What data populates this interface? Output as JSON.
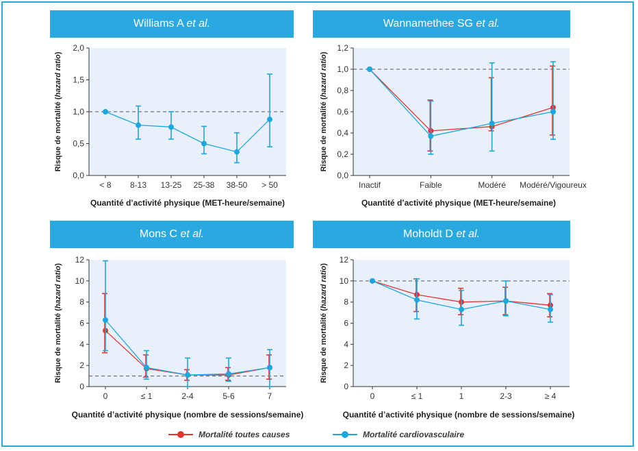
{
  "colors": {
    "accent": "#29a9e0",
    "red": "#e3342f",
    "blue": "#1ba7e0",
    "plot_bg": "#e8f1fb"
  },
  "legend": {
    "all_cause": "Mortalité toutes causes",
    "cardio": "Mortalité cardiovasculaire"
  },
  "panels": [
    {
      "title_main": "Williams A ",
      "title_em": "et al."
    },
    {
      "title_main": "Wannamethee SG ",
      "title_em": "et al."
    },
    {
      "title_main": "Mons C ",
      "title_em": "et al."
    },
    {
      "title_main": "Moholdt D ",
      "title_em": "et al."
    }
  ],
  "chart_data": [
    {
      "type": "line",
      "title": "Williams A et al.",
      "ylabel_main": "Risque de mortalité (",
      "ylabel_em": "hazard ratio",
      "ylabel_end": ")",
      "xlabel": "Quantité d’activité physique (MET-heure/semaine)",
      "categories": [
        "< 8",
        "8-13",
        "13-25",
        "25-38",
        "38-50",
        "> 50"
      ],
      "ylim": [
        0,
        2
      ],
      "yticks": [
        "0,0",
        "0,5",
        "1,0",
        "1,5",
        "2,0"
      ],
      "reference": 1,
      "series": [
        {
          "color": "blue",
          "values": [
            1.0,
            0.79,
            0.76,
            0.5,
            0.37,
            0.88
          ],
          "lower": [
            null,
            0.57,
            0.57,
            0.34,
            0.2,
            0.45
          ],
          "upper": [
            null,
            1.09,
            1.0,
            0.77,
            0.67,
            1.59
          ]
        }
      ]
    },
    {
      "type": "line",
      "title": "Wannamethee SG et al.",
      "ylabel_main": "Risque de mortalité (",
      "ylabel_em": "hazard ratio",
      "ylabel_end": ")",
      "xlabel": "Quantité d’activité physique (MET-heure/semaine)",
      "categories": [
        "Inactif",
        "Faible",
        "Modéré",
        "Modéré/Vigoureux"
      ],
      "ylim": [
        0,
        1.2
      ],
      "yticks": [
        "0,0",
        "0,2",
        "0,4",
        "0,6",
        "0,8",
        "1,0",
        "1,2"
      ],
      "reference": 1,
      "series": [
        {
          "name": "Mortalité toutes causes",
          "color": "red",
          "values": [
            1.0,
            0.42,
            0.46,
            0.64
          ],
          "lower": [
            null,
            0.23,
            0.42,
            0.38
          ],
          "upper": [
            null,
            0.71,
            0.92,
            1.03
          ]
        },
        {
          "name": "Mortalité cardiovasculaire",
          "color": "blue",
          "values": [
            1.0,
            0.37,
            0.49,
            0.6
          ],
          "lower": [
            null,
            0.2,
            0.23,
            0.34
          ],
          "upper": [
            null,
            0.7,
            1.06,
            1.07
          ]
        }
      ]
    },
    {
      "type": "line",
      "title": "Mons C et al.",
      "ylabel_main": "Risque de mortalité (",
      "ylabel_em": "hazard ratio",
      "ylabel_end": ")",
      "xlabel": "Quantité d’activité physique (nombre de sessions/semaine)",
      "categories": [
        "0",
        "≤ 1",
        "2-4",
        "5-6",
        "7"
      ],
      "ylim": [
        0,
        12
      ],
      "yticks": [
        "0",
        "2",
        "4",
        "6",
        "8",
        "10",
        "12"
      ],
      "reference": 1,
      "series": [
        {
          "name": "Mortalité toutes causes",
          "color": "red",
          "values": [
            5.3,
            1.7,
            1.1,
            1.1,
            1.8
          ],
          "lower": [
            3.2,
            0.9,
            0.6,
            0.6,
            0.7
          ],
          "upper": [
            8.8,
            3.0,
            1.6,
            1.8,
            3.0
          ]
        },
        {
          "name": "Mortalité cardiovasculaire",
          "color": "blue",
          "values": [
            6.3,
            1.8,
            1.1,
            1.2,
            1.8
          ],
          "lower": [
            3.4,
            0.7,
            0.0,
            0.5,
            0.0
          ],
          "upper": [
            11.9,
            3.4,
            2.7,
            2.7,
            3.5
          ]
        }
      ]
    },
    {
      "type": "line",
      "title": "Moholdt D et al.",
      "ylabel_main": "Risque de mortalité (",
      "ylabel_em": "hazard ratio",
      "ylabel_end": ")",
      "xlabel": "Quantité d’activité physique (nombre de sessions/semaine)",
      "categories": [
        "0",
        "≤ 1",
        "1",
        "2-3",
        "≥ 4"
      ],
      "ylim": [
        0,
        12
      ],
      "yticks": [
        "0",
        "2",
        "4",
        "6",
        "8",
        "10",
        "12"
      ],
      "reference": 10,
      "series": [
        {
          "name": "Mortalité toutes causes",
          "color": "red",
          "values": [
            10.0,
            8.7,
            8.0,
            8.1,
            7.7
          ],
          "lower": [
            null,
            7.1,
            6.8,
            6.8,
            6.6
          ],
          "upper": [
            null,
            10.2,
            9.3,
            9.4,
            8.8
          ]
        },
        {
          "name": "Mortalité cardiovasculaire",
          "color": "blue",
          "values": [
            10.0,
            8.2,
            7.3,
            8.1,
            7.3
          ],
          "lower": [
            null,
            6.4,
            5.8,
            6.7,
            6.1
          ],
          "upper": [
            null,
            10.2,
            9.1,
            10.0,
            8.7
          ]
        }
      ]
    }
  ]
}
